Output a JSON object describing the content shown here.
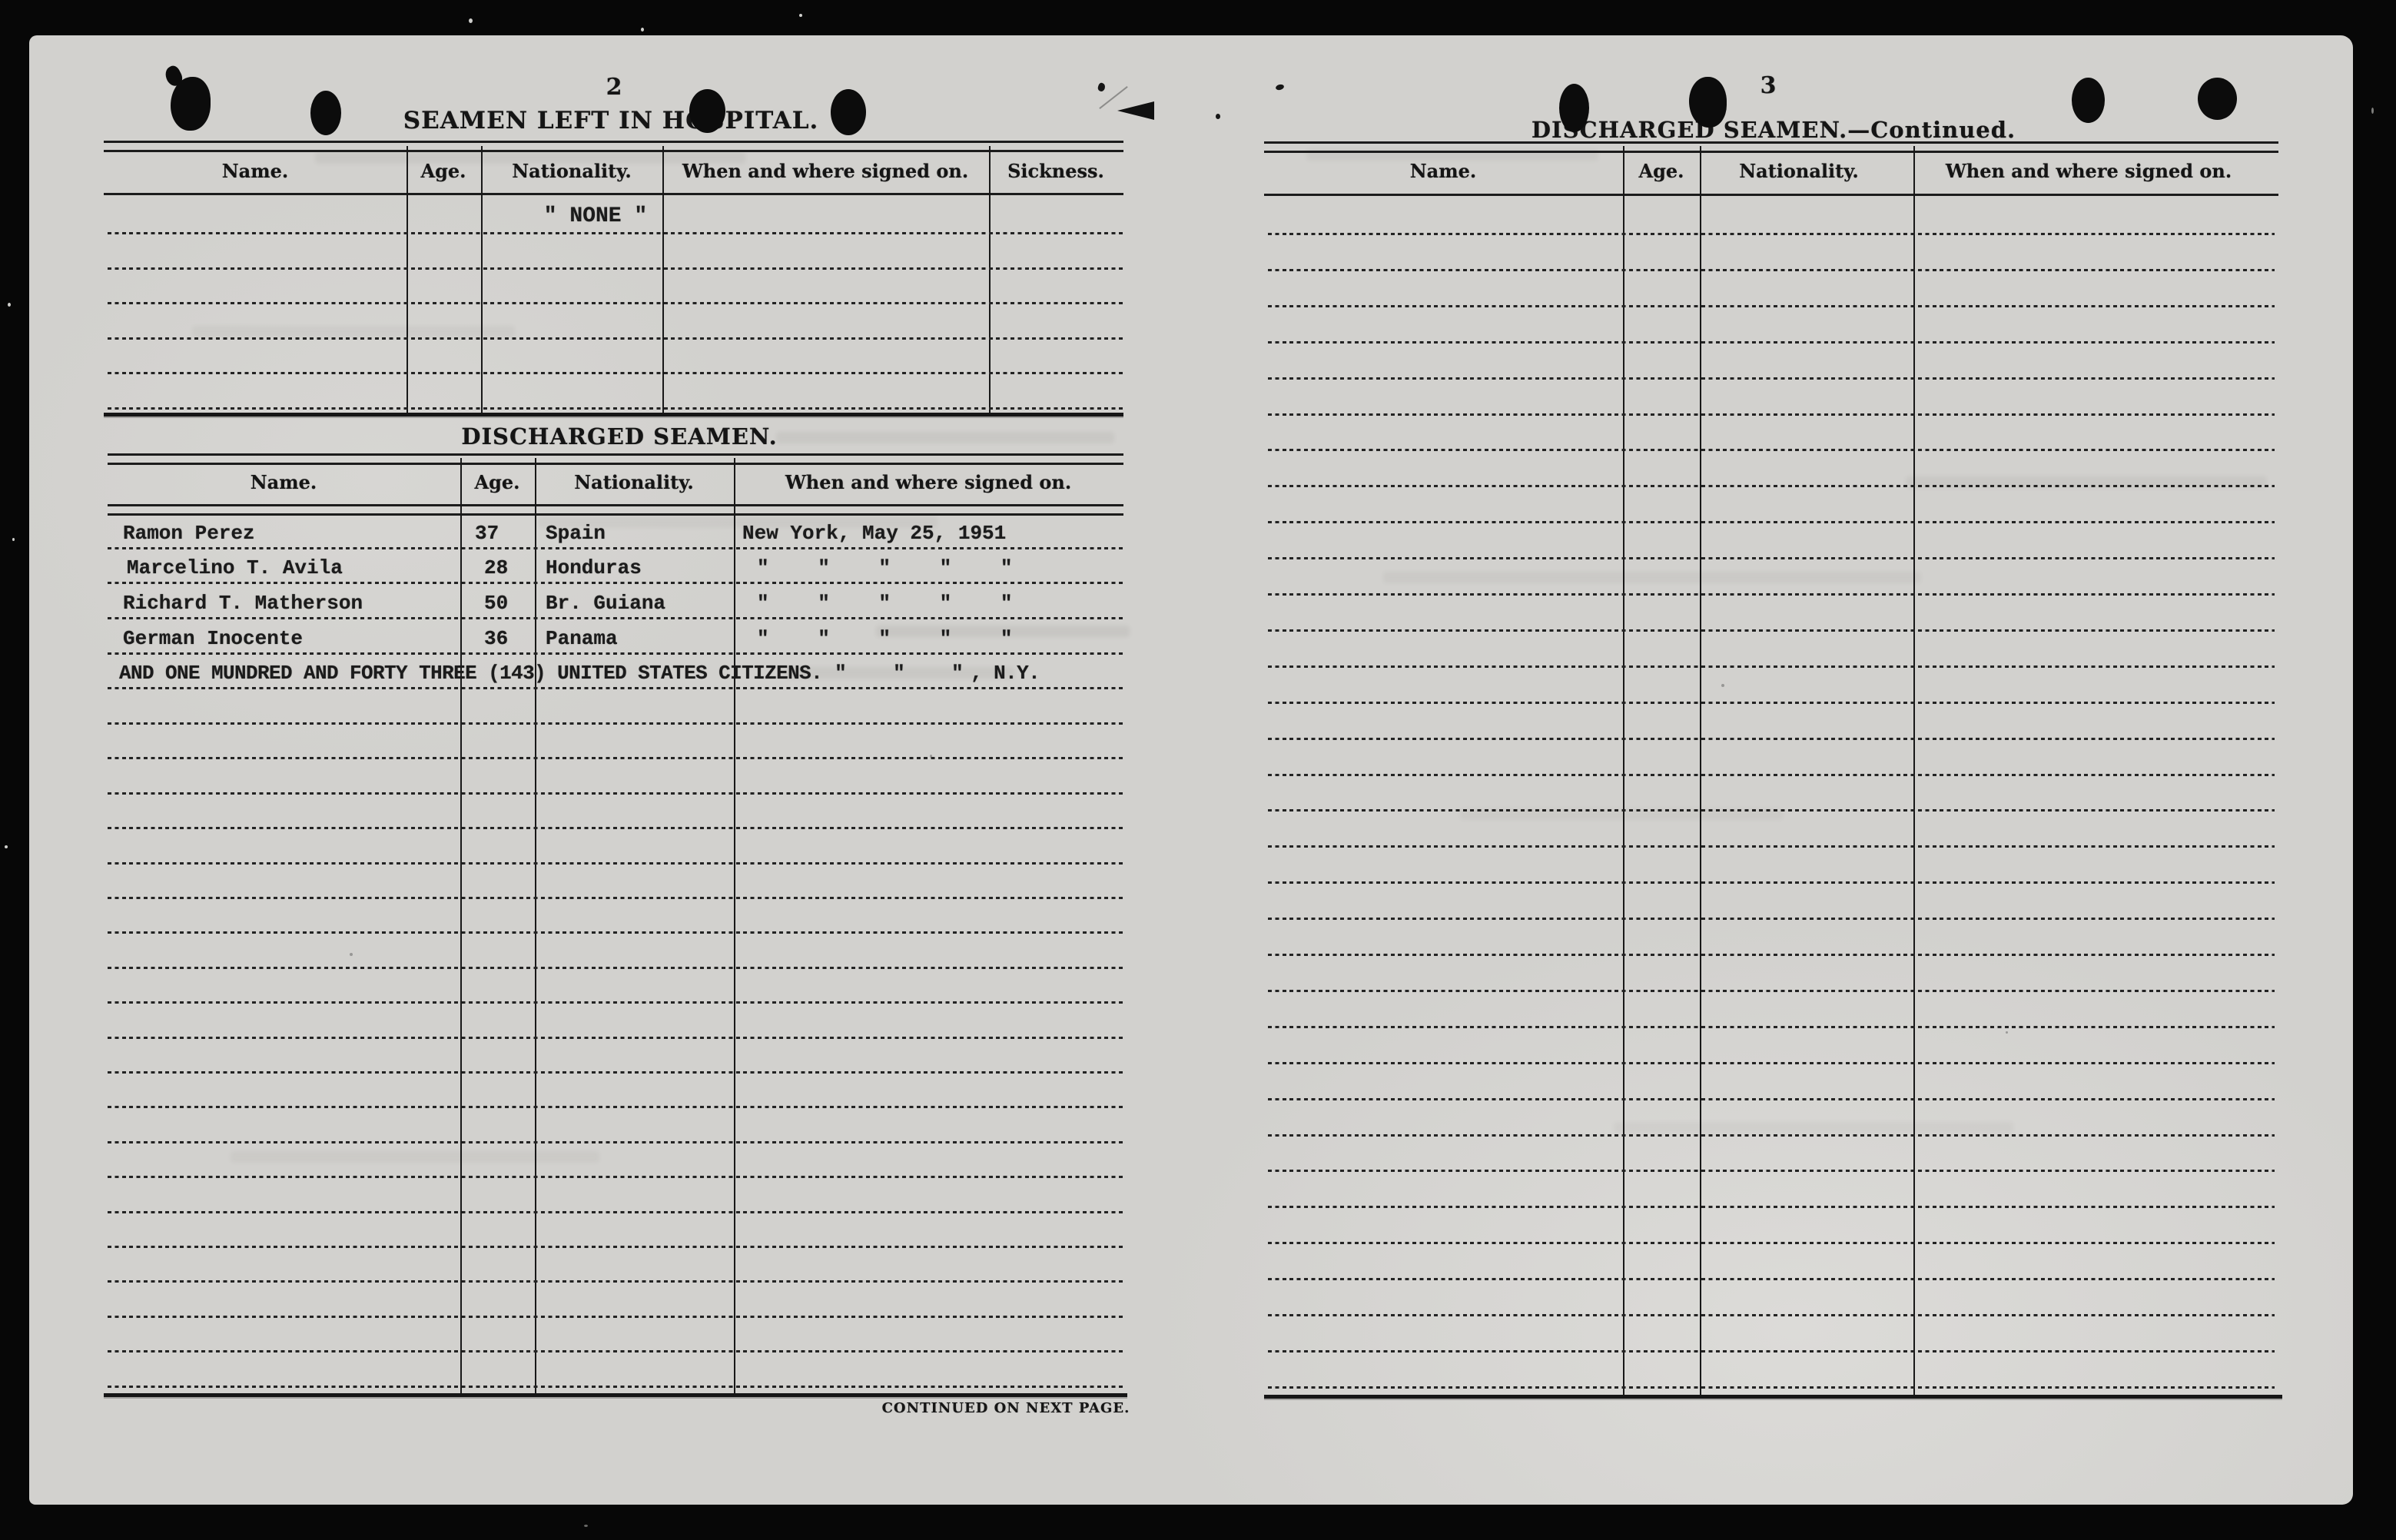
{
  "left": {
    "page_number": "2",
    "hospital": {
      "title": "SEAMEN LEFT IN HOSPITAL.",
      "columns": [
        "Name.",
        "Age.",
        "Nationality.",
        "When and where signed on.",
        "Sickness."
      ],
      "none_entry": "\" NONE \""
    },
    "discharged": {
      "title": "DISCHARGED SEAMEN.",
      "columns": [
        "Name.",
        "Age.",
        "Nationality.",
        "When and where signed on."
      ],
      "rows": [
        {
          "name": "Ramon Perez",
          "age": "37",
          "nationality": "Spain",
          "signed_on": "New York, May 25, 1951"
        },
        {
          "name": "Marcelino T. Avila",
          "age": "28",
          "nationality": "Honduras",
          "signed_on": "\" \" \" \" \""
        },
        {
          "name": "Richard T. Matherson",
          "age": "50",
          "nationality": "Br. Guiana",
          "signed_on": "\" \" \" \" \""
        },
        {
          "name": "German Inocente",
          "age": "36",
          "nationality": "Panama",
          "signed_on": "\" \" \" \" \""
        }
      ],
      "summary": {
        "text": "AND ONE MUNDRED AND FORTY THREE (143) UNITED STATES CITIZENS.",
        "dittos": "\" \" \"",
        "suffix": ", N.Y."
      }
    },
    "continued_note": "CONTINUED ON NEXT PAGE."
  },
  "right": {
    "page_number": "3",
    "title": "DISCHARGED SEAMEN.—Continued.",
    "columns": [
      "Name.",
      "Age.",
      "Nationality.",
      "When and where signed on."
    ]
  }
}
